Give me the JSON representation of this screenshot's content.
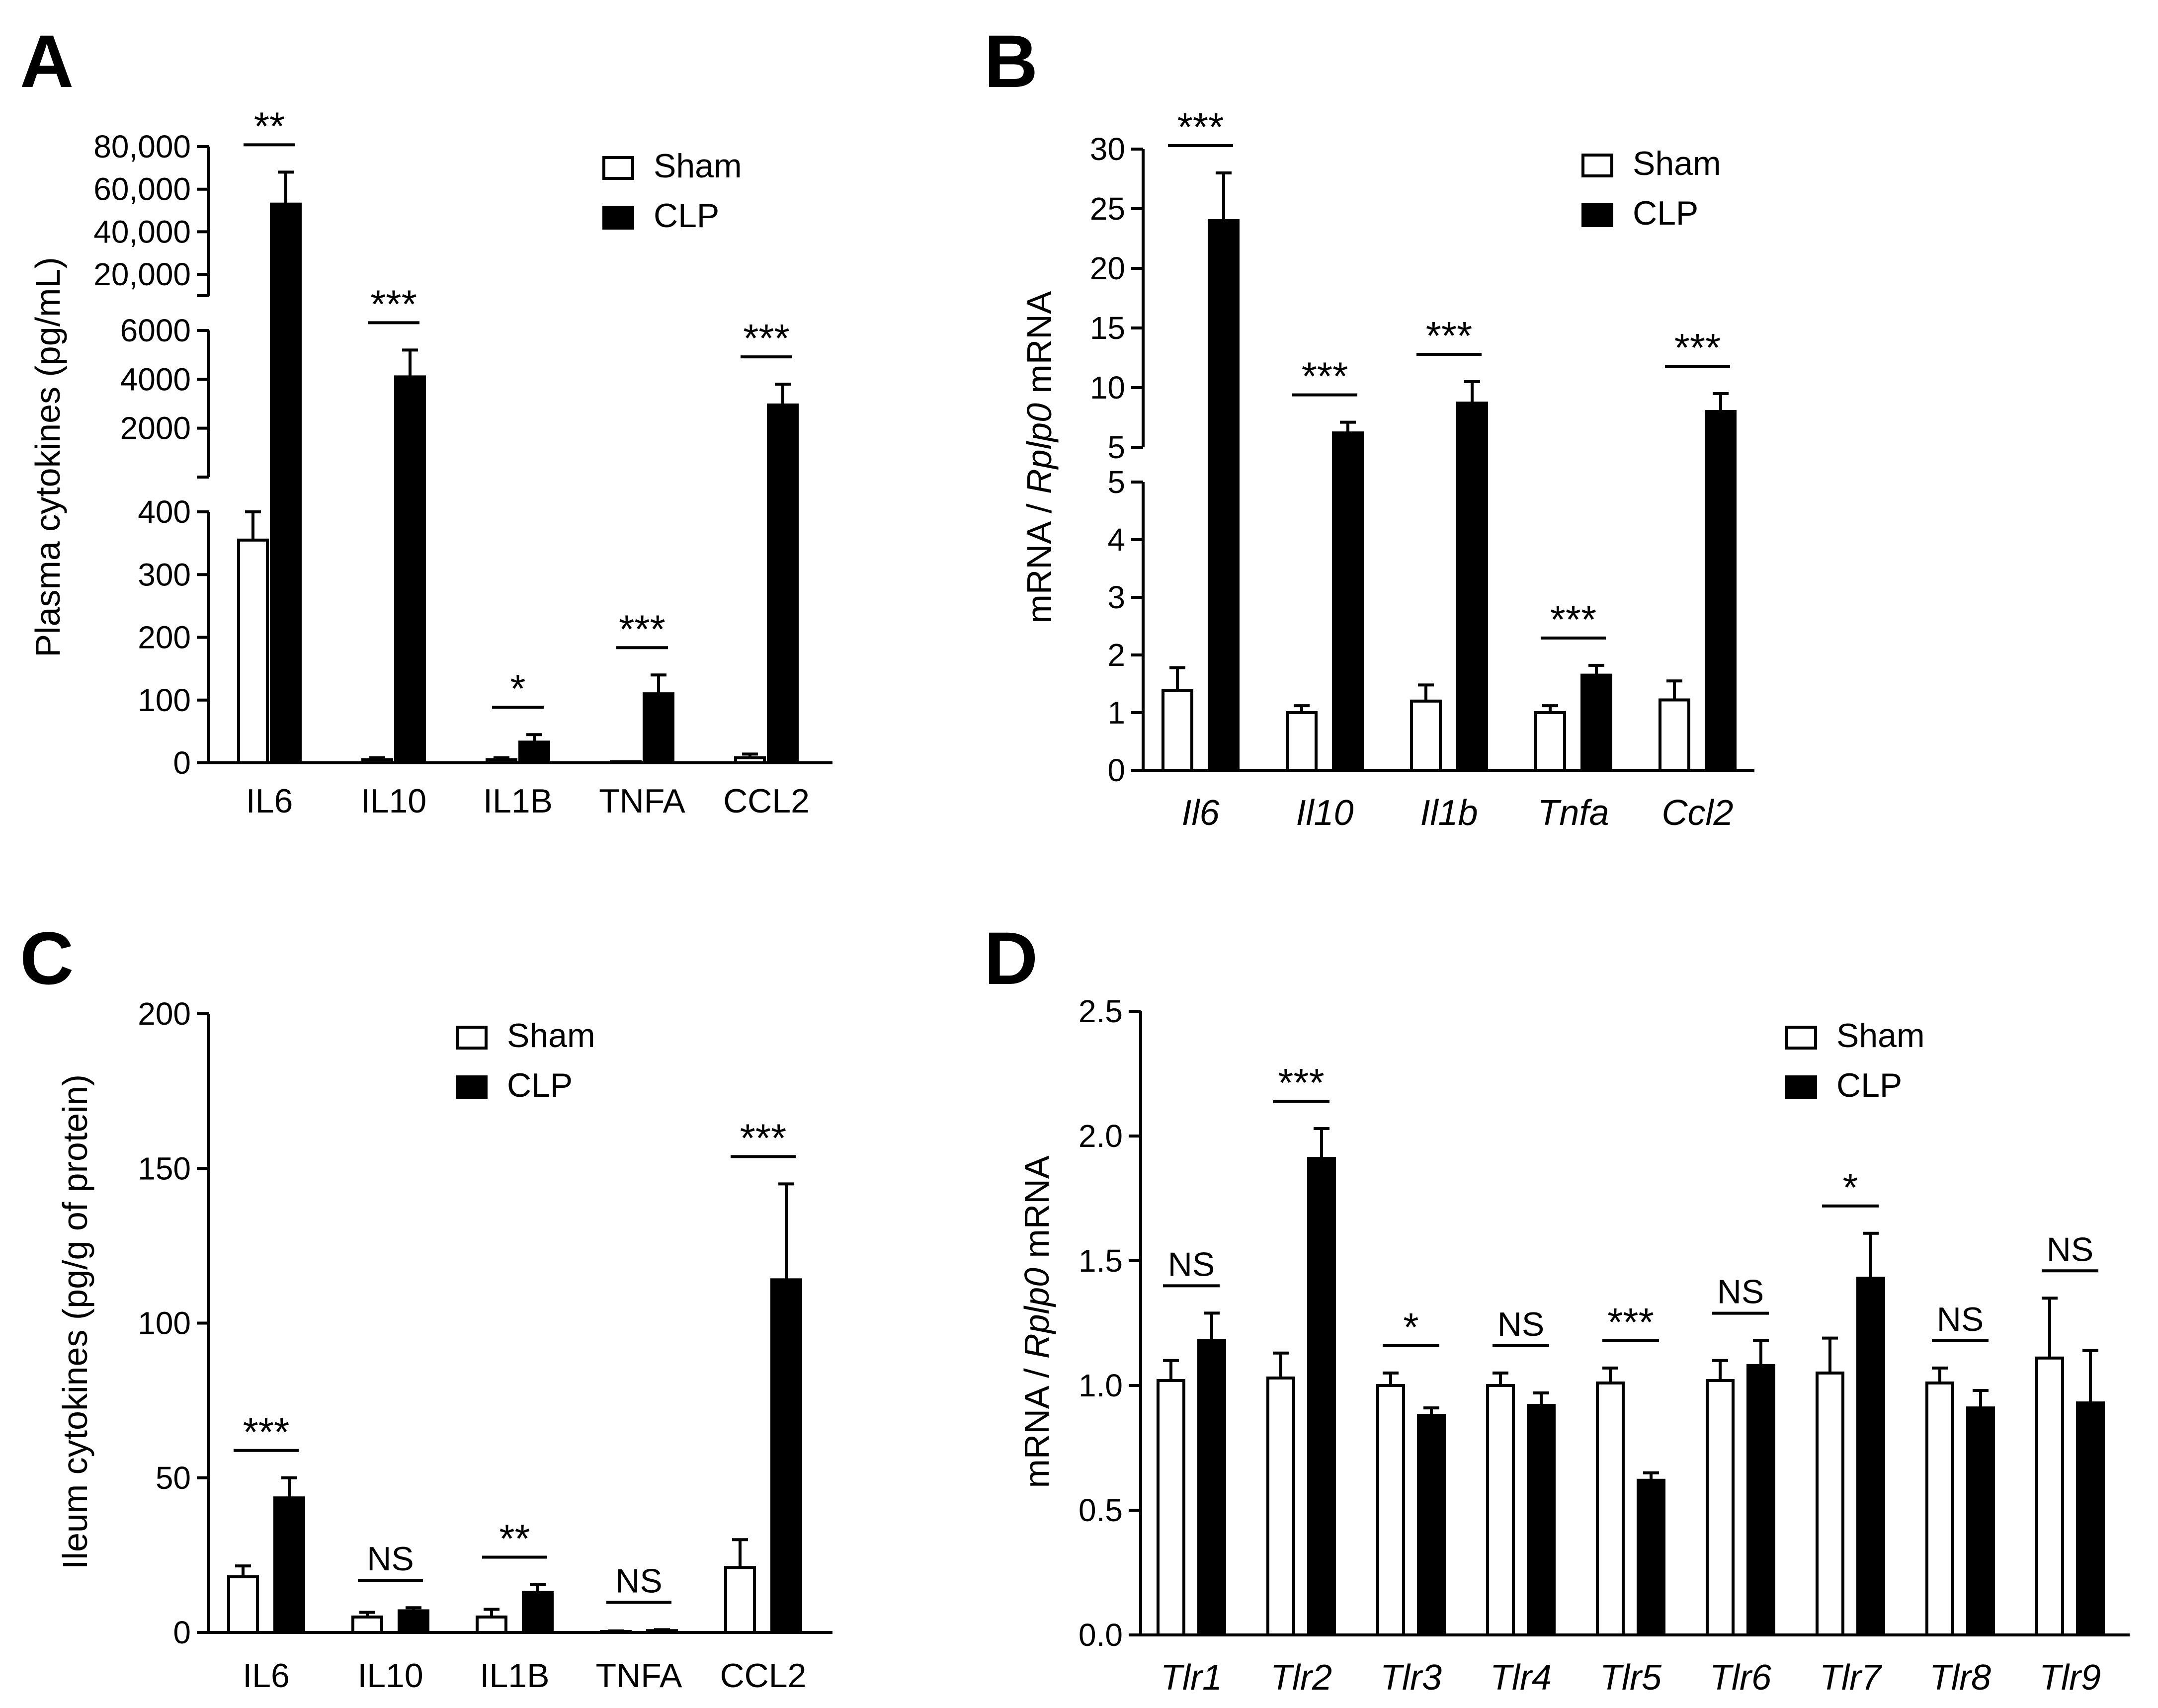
{
  "colors": {
    "sham": "#ffffff",
    "clp": "#000000",
    "axis": "#000000",
    "text": "#000000"
  },
  "chart_data": [
    {
      "panel": "A",
      "type": "bar",
      "ylabel": "Plasma cytokines (pg/mL)",
      "ylabel_italic": "",
      "ylabel_suffix": "",
      "categories": [
        "IL6",
        "IL10",
        "IL1B",
        "TNFA",
        "CCL2"
      ],
      "categories_italic": false,
      "legend": [
        "Sham",
        "CLP"
      ],
      "legend_position": "top-right",
      "series": [
        {
          "name": "Sham",
          "values": [
            355,
            5,
            5,
            0,
            8
          ],
          "errors": [
            45,
            3,
            3,
            0,
            6
          ]
        },
        {
          "name": "CLP",
          "values": [
            53000,
            4100,
            33,
            110,
            2950
          ],
          "errors": [
            15000,
            1100,
            12,
            30,
            850
          ]
        }
      ],
      "significance": [
        "**",
        "***",
        "*",
        "***",
        "***"
      ],
      "y_segments": [
        {
          "range": [
            0,
            400
          ],
          "ticks": [
            0,
            100,
            200,
            300,
            400
          ],
          "tick_labels": [
            "0",
            "100",
            "200",
            "300",
            "400"
          ]
        },
        {
          "range": [
            0,
            6000
          ],
          "ticks": [
            2000,
            4000,
            6000
          ],
          "tick_labels": [
            "2000",
            "4000",
            "6000"
          ]
        },
        {
          "range": [
            10000,
            80000
          ],
          "ticks": [
            20000,
            40000,
            60000,
            80000
          ],
          "tick_labels": [
            "20,000",
            "40,000",
            "60,000",
            "80,000"
          ]
        }
      ]
    },
    {
      "panel": "B",
      "type": "bar",
      "ylabel": "mRNA  / ",
      "ylabel_italic": "Rplp0",
      "ylabel_suffix": " mRNA",
      "categories": [
        "Il6",
        "Il10",
        "Il1b",
        "Tnfa",
        "Ccl2"
      ],
      "categories_italic": true,
      "legend": [
        "Sham",
        "CLP"
      ],
      "legend_position": "top-right",
      "series": [
        {
          "name": "Sham",
          "values": [
            1.38,
            1.0,
            1.2,
            1.0,
            1.22
          ],
          "errors": [
            0.4,
            0.12,
            0.28,
            0.12,
            0.33
          ]
        },
        {
          "name": "CLP",
          "values": [
            24.0,
            6.2,
            8.7,
            1.65,
            8.0
          ],
          "errors": [
            4.0,
            0.9,
            1.8,
            0.17,
            1.5
          ]
        }
      ],
      "significance": [
        "***",
        "***",
        "***",
        "***",
        "***"
      ],
      "y_segments": [
        {
          "range": [
            0,
            5
          ],
          "ticks": [
            0,
            1,
            2,
            3,
            4,
            5
          ],
          "tick_labels": [
            "0",
            "1",
            "2",
            "3",
            "4",
            "5"
          ]
        },
        {
          "range": [
            5,
            30
          ],
          "ticks": [
            5,
            10,
            15,
            20,
            25,
            30
          ],
          "tick_labels": [
            "5",
            "10",
            "15",
            "20",
            "25",
            "30"
          ]
        }
      ]
    },
    {
      "panel": "C",
      "type": "bar",
      "ylabel": "Ileum cytokines (pg/g of protein)",
      "ylabel_italic": "",
      "ylabel_suffix": "",
      "categories": [
        "IL6",
        "IL10",
        "IL1B",
        "TNFA",
        "CCL2"
      ],
      "categories_italic": false,
      "legend": [
        "Sham",
        "CLP"
      ],
      "legend_position": "top-right",
      "series": [
        {
          "name": "Sham",
          "values": [
            18,
            5,
            5,
            0.3,
            21
          ],
          "errors": [
            3.5,
            1.5,
            2.5,
            0.2,
            9
          ]
        },
        {
          "name": "CLP",
          "values": [
            43.5,
            7,
            13,
            0.6,
            114
          ],
          "errors": [
            6.5,
            1,
            2.5,
            0.3,
            31
          ]
        }
      ],
      "significance": [
        "***",
        "NS",
        "**",
        "NS",
        "***"
      ],
      "y_segments": [
        {
          "range": [
            0,
            200
          ],
          "ticks": [
            0,
            50,
            100,
            150,
            200
          ],
          "tick_labels": [
            "0",
            "50",
            "100",
            "150",
            "200"
          ]
        }
      ]
    },
    {
      "panel": "D",
      "type": "bar",
      "ylabel": "mRNA  / ",
      "ylabel_italic": "Rplp0",
      "ylabel_suffix": " mRNA",
      "categories": [
        "Tlr1",
        "Tlr2",
        "Tlr3",
        "Tlr4",
        "Tlr5",
        "Tlr6",
        "Tlr7",
        "Tlr8",
        "Tlr9"
      ],
      "categories_italic": true,
      "legend": [
        "Sham",
        "CLP"
      ],
      "legend_position": "top-right",
      "series": [
        {
          "name": "Sham",
          "values": [
            1.02,
            1.03,
            1.0,
            1.0,
            1.01,
            1.02,
            1.05,
            1.01,
            1.11
          ],
          "errors": [
            0.08,
            0.1,
            0.05,
            0.05,
            0.06,
            0.08,
            0.14,
            0.06,
            0.24
          ]
        },
        {
          "name": "CLP",
          "values": [
            1.18,
            1.91,
            0.88,
            0.92,
            0.62,
            1.08,
            1.43,
            0.91,
            0.93
          ],
          "errors": [
            0.11,
            0.12,
            0.03,
            0.05,
            0.03,
            0.1,
            0.18,
            0.07,
            0.21
          ]
        }
      ],
      "significance": [
        "NS",
        "***",
        "*",
        "NS",
        "***",
        "NS",
        "*",
        "NS",
        "NS"
      ],
      "y_segments": [
        {
          "range": [
            0,
            2.5
          ],
          "ticks": [
            0,
            0.5,
            1.0,
            1.5,
            2.0,
            2.5
          ],
          "tick_labels": [
            "0.0",
            "0.5",
            "1.0",
            "1.5",
            "2.0",
            "2.5"
          ]
        }
      ]
    }
  ]
}
